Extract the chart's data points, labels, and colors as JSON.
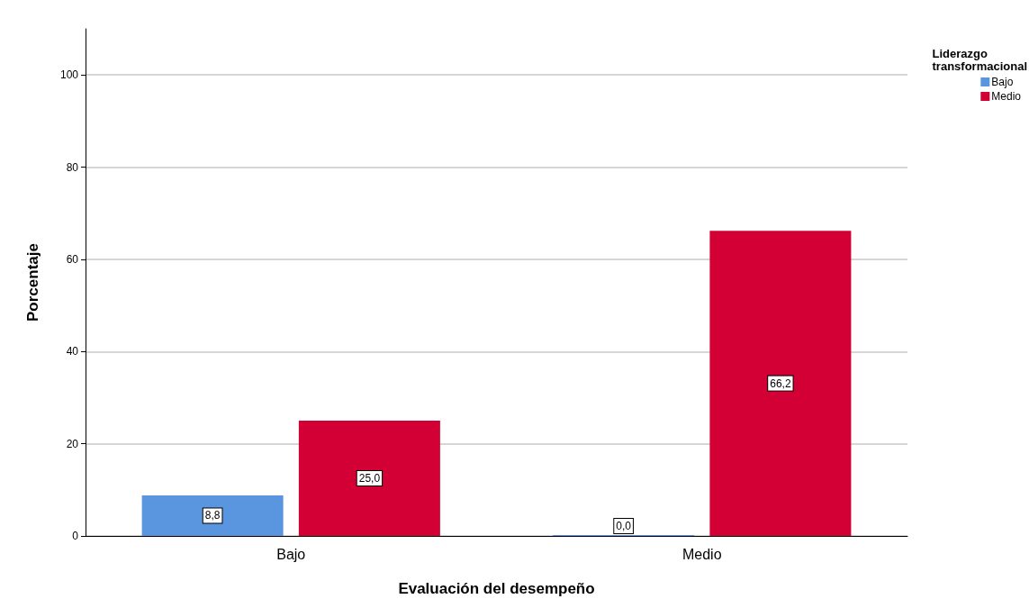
{
  "chart_data": {
    "type": "bar",
    "xlabel": "Evaluación del desempeño",
    "ylabel": "Porcentaje",
    "legend_title": "Liderazgo transformacional",
    "categories": [
      "Bajo",
      "Medio"
    ],
    "series": [
      {
        "name": "Bajo",
        "color": "#5a96e0",
        "values": [
          8.8,
          0.0
        ],
        "value_labels": [
          "8,8",
          "0,0"
        ]
      },
      {
        "name": "Medio",
        "color": "#d20034",
        "values": [
          25.0,
          66.2
        ],
        "value_labels": [
          "25,0",
          "66,2"
        ]
      }
    ],
    "ylim": [
      0,
      110
    ],
    "yticks": [
      0,
      20,
      40,
      60,
      80,
      100
    ],
    "grid": "y",
    "legend": "top right"
  }
}
